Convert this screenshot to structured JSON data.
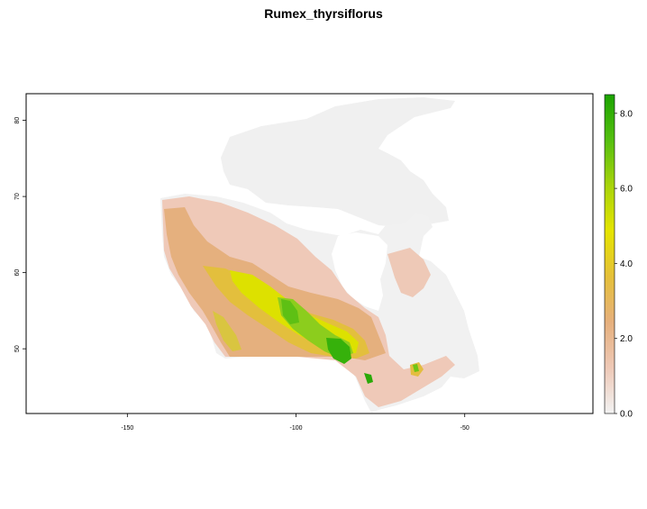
{
  "title": "Rumex_thyrsiflorus",
  "map": {
    "x_ticks": [
      {
        "value": -150,
        "label": "-150"
      },
      {
        "value": -100,
        "label": "-100"
      },
      {
        "value": -50,
        "label": "-50"
      }
    ],
    "y_ticks": [
      {
        "value": 50,
        "label": "50"
      },
      {
        "value": 60,
        "label": "60"
      },
      {
        "value": 70,
        "label": "70"
      },
      {
        "value": 80,
        "label": "80"
      }
    ],
    "xlim": [
      -180,
      -12
    ],
    "ylim": [
      41.5,
      83.5
    ]
  },
  "legend": {
    "range": [
      0,
      8.5
    ],
    "ticks": [
      {
        "value": 0,
        "label": "0.0"
      },
      {
        "value": 2,
        "label": "2.0"
      },
      {
        "value": 4,
        "label": "4.0"
      },
      {
        "value": 6,
        "label": "6.0"
      },
      {
        "value": 8,
        "label": "8.0"
      }
    ],
    "colors": [
      "#f2f2f2",
      "#eec9b7",
      "#e6b07d",
      "#e5c03a",
      "#e5e400",
      "#a8d40a",
      "#55bf10",
      "#1ba300"
    ]
  }
}
